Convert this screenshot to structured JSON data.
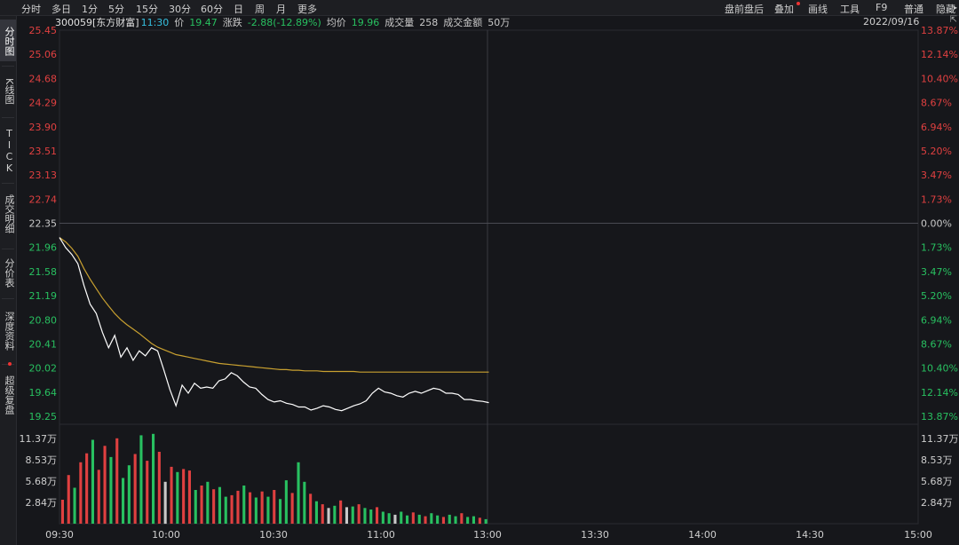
{
  "toolbar": {
    "left": [
      "分时",
      "多日",
      "1分",
      "5分",
      "15分",
      "30分",
      "60分",
      "日",
      "周",
      "月",
      "更多"
    ],
    "right": [
      "盘前盘后",
      "叠加",
      "画线",
      "工具",
      "F9",
      "普通",
      "隐藏"
    ],
    "expand_icon": "chevron-right-icon"
  },
  "info": {
    "code_name": "300059[东方财富]",
    "time": "11:30",
    "price_label": "价",
    "price": "19.47",
    "change_label": "涨跌",
    "change": "-2.88(-12.89%)",
    "avg_label": "均价",
    "avg": "19.96",
    "vol_label": "成交量",
    "vol": "258",
    "amount_label": "成交金额",
    "amount": "50万",
    "date": "2022/09/16"
  },
  "sidebar": [
    {
      "label": "分时图",
      "active": true
    },
    {
      "label": "K线图"
    },
    {
      "label": "TICK"
    },
    {
      "label": "成交明细"
    },
    {
      "label": "分价表"
    },
    {
      "label": "深度资料"
    },
    {
      "label": "超级复盘",
      "badge": true
    }
  ],
  "colors": {
    "up": "#e04040",
    "down": "#28c060",
    "neutral": "#c9c9c9",
    "price_line": "#ffffff",
    "avg_line": "#c8a030",
    "grid": "#2a2b30",
    "highlight": "#36c0e0"
  },
  "chart_data": [
    {
      "type": "line",
      "title": "",
      "y_ticks_left": [
        "25.45",
        "25.06",
        "24.68",
        "24.29",
        "23.90",
        "23.51",
        "23.13",
        "22.74",
        "22.35",
        "21.96",
        "21.58",
        "21.19",
        "20.80",
        "20.41",
        "20.02",
        "19.64",
        "19.25"
      ],
      "y_ticks_right": [
        "13.87%",
        "12.14%",
        "10.40%",
        "8.67%",
        "6.94%",
        "5.20%",
        "3.47%",
        "1.73%",
        "0.00%",
        "1.73%",
        "3.47%",
        "5.20%",
        "6.94%",
        "8.67%",
        "10.40%",
        "12.14%",
        "13.87%"
      ],
      "prev_close": 22.35,
      "ylim": [
        19.25,
        25.45
      ],
      "x_ticks": [
        "09:30",
        "10:00",
        "10:30",
        "11:00",
        "13:00",
        "13:30",
        "14:00",
        "14:30",
        "15:00"
      ],
      "series": [
        {
          "values": [
            22.12,
            21.96,
            21.85,
            21.7,
            21.35,
            21.05,
            20.9,
            20.6,
            20.35,
            20.55,
            20.2,
            20.35,
            20.15,
            20.3,
            20.22,
            20.35,
            20.3,
            20.0,
            19.68,
            19.42,
            19.75,
            19.62,
            19.78,
            19.7,
            19.72,
            19.7,
            19.82,
            19.85,
            19.95,
            19.9,
            19.8,
            19.72,
            19.7,
            19.6,
            19.52,
            19.48,
            19.5,
            19.46,
            19.44,
            19.4,
            19.4,
            19.35,
            19.38,
            19.42,
            19.4,
            19.36,
            19.34,
            19.38,
            19.42,
            19.45,
            19.5,
            19.62,
            19.7,
            19.64,
            19.62,
            19.58,
            19.56,
            19.62,
            19.65,
            19.62,
            19.66,
            19.7,
            19.68,
            19.62,
            19.62,
            19.6,
            19.52,
            19.52,
            19.5,
            19.49,
            19.47
          ]
        },
        {
          "values": [
            22.12,
            22.05,
            21.95,
            21.82,
            21.62,
            21.45,
            21.3,
            21.15,
            21.02,
            20.9,
            20.8,
            20.72,
            20.65,
            20.58,
            20.5,
            20.42,
            20.36,
            20.32,
            20.28,
            20.24,
            20.22,
            20.2,
            20.18,
            20.16,
            20.14,
            20.12,
            20.1,
            20.09,
            20.08,
            20.07,
            20.06,
            20.05,
            20.04,
            20.03,
            20.02,
            20.01,
            20.0,
            20.0,
            19.99,
            19.99,
            19.98,
            19.98,
            19.98,
            19.97,
            19.97,
            19.97,
            19.97,
            19.97,
            19.97,
            19.96,
            19.96,
            19.96,
            19.96,
            19.96,
            19.96,
            19.96,
            19.96,
            19.96,
            19.96,
            19.96,
            19.96,
            19.96,
            19.96,
            19.96,
            19.96,
            19.96,
            19.96,
            19.96,
            19.96,
            19.96,
            19.96
          ]
        }
      ]
    },
    {
      "type": "bar",
      "title": "",
      "y_ticks": [
        "11.37万",
        "8.53万",
        "5.68万",
        "2.84万"
      ],
      "ylim": [
        0,
        12.8
      ],
      "x_ticks": [
        "09:30",
        "10:00",
        "10:30",
        "11:00",
        "13:00",
        "13:30",
        "14:00",
        "14:30",
        "15:00"
      ],
      "values": [
        3.2,
        6.5,
        4.8,
        8.2,
        9.4,
        11.2,
        7.2,
        10.4,
        8.9,
        11.4,
        6.1,
        7.8,
        9.3,
        11.8,
        8.4,
        12.0,
        9.6,
        5.6,
        7.6,
        6.9,
        7.3,
        7.1,
        4.5,
        5.1,
        5.6,
        4.6,
        4.9,
        3.6,
        3.8,
        4.4,
        5.1,
        4.2,
        3.5,
        4.3,
        3.6,
        4.5,
        3.3,
        5.8,
        4.1,
        8.2,
        5.6,
        4.0,
        3.0,
        2.6,
        2.1,
        2.4,
        3.1,
        2.2,
        2.3,
        2.6,
        2.1,
        1.9,
        2.2,
        1.6,
        1.4,
        1.2,
        1.6,
        1.1,
        1.5,
        1.2,
        1.0,
        1.4,
        1.1,
        0.9,
        1.2,
        1.0,
        1.4,
        0.9,
        1.0,
        0.8,
        0.6
      ],
      "colors": [
        "up",
        "up",
        "down",
        "up",
        "up",
        "down",
        "up",
        "up",
        "down",
        "up",
        "down",
        "down",
        "up",
        "down",
        "up",
        "down",
        "up",
        "neutral",
        "up",
        "down",
        "up",
        "up",
        "down",
        "up",
        "down",
        "up",
        "down",
        "down",
        "up",
        "up",
        "down",
        "up",
        "down",
        "up",
        "down",
        "up",
        "down",
        "down",
        "up",
        "down",
        "down",
        "up",
        "down",
        "up",
        "neutral",
        "down",
        "up",
        "neutral",
        "down",
        "up",
        "down",
        "down",
        "up",
        "down",
        "down",
        "neutral",
        "down",
        "down",
        "up",
        "down",
        "up",
        "down",
        "down",
        "up",
        "down",
        "down",
        "up",
        "down",
        "down",
        "up",
        "down"
      ]
    }
  ]
}
